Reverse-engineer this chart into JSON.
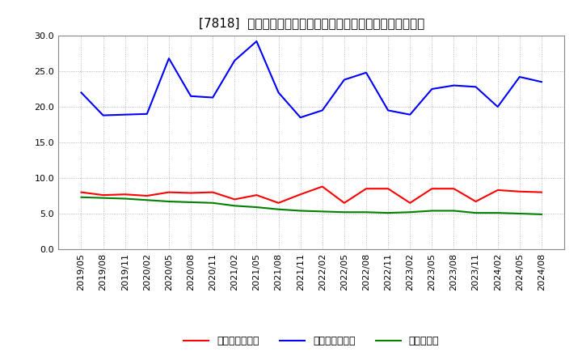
{
  "title": "[7818]  売上債権回転率、買入債務回転率、在庫回転率の推移",
  "xlabels": [
    "2019/05",
    "2019/08",
    "2019/11",
    "2020/02",
    "2020/05",
    "2020/08",
    "2020/11",
    "2021/02",
    "2021/05",
    "2021/08",
    "2021/11",
    "2022/02",
    "2022/05",
    "2022/08",
    "2022/11",
    "2023/02",
    "2023/05",
    "2023/08",
    "2023/11",
    "2024/02",
    "2024/05",
    "2024/08"
  ],
  "receivables": [
    8.0,
    7.6,
    7.7,
    7.5,
    8.0,
    7.9,
    8.0,
    7.0,
    7.6,
    6.5,
    7.7,
    8.8,
    6.5,
    8.5,
    8.5,
    6.5,
    8.5,
    8.5,
    6.7,
    8.3,
    8.1,
    8.0
  ],
  "payables": [
    22.0,
    18.8,
    18.9,
    19.0,
    26.8,
    21.5,
    21.3,
    26.5,
    29.2,
    22.0,
    18.5,
    19.5,
    23.8,
    24.8,
    19.5,
    18.9,
    22.5,
    23.0,
    22.8,
    20.0,
    24.2,
    23.5
  ],
  "inventory": [
    7.3,
    7.2,
    7.1,
    6.9,
    6.7,
    6.6,
    6.5,
    6.1,
    5.9,
    5.6,
    5.4,
    5.3,
    5.2,
    5.2,
    5.1,
    5.2,
    5.4,
    5.4,
    5.1,
    5.1,
    5.0,
    4.9
  ],
  "receivables_color": "#ff0000",
  "payables_color": "#0000ff",
  "inventory_color": "#008000",
  "ylim": [
    0.0,
    30.0
  ],
  "yticks": [
    0.0,
    5.0,
    10.0,
    15.0,
    20.0,
    25.0,
    30.0
  ],
  "legend_labels": [
    "売上債権回転率",
    "買入債務回転率",
    "在庫回転率"
  ],
  "bg_color": "#ffffff",
  "grid_color": "#aaaaaa",
  "title_fontsize": 11,
  "label_fontsize": 8,
  "legend_fontsize": 9
}
